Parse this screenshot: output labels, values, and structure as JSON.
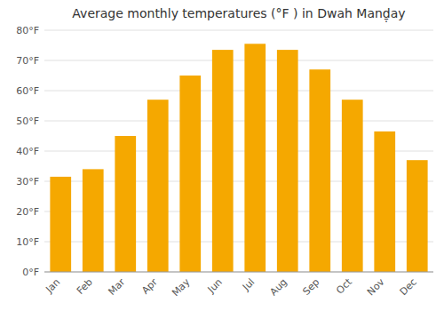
{
  "chart_data": {
    "type": "bar",
    "title": "Average monthly temperatures (°F ) in Dwah Manḏ̣ay",
    "categories": [
      "Jan",
      "Feb",
      "Mar",
      "Apr",
      "May",
      "Jun",
      "Jul",
      "Aug",
      "Sep",
      "Oct",
      "Nov",
      "Dec"
    ],
    "values": [
      31.5,
      34,
      45,
      57,
      65,
      73.5,
      75.5,
      73.5,
      67,
      57,
      46.5,
      37
    ],
    "color": "#F5A800",
    "ylim": [
      0,
      80
    ],
    "yticks": [
      {
        "value": 0,
        "label": "0°F"
      },
      {
        "value": 10,
        "label": "10°F"
      },
      {
        "value": 20,
        "label": "20°F"
      },
      {
        "value": 30,
        "label": "30°F"
      },
      {
        "value": 40,
        "label": "40°F"
      },
      {
        "value": 50,
        "label": "50°F"
      },
      {
        "value": 60,
        "label": "60°F"
      },
      {
        "value": 70,
        "label": "70°F"
      },
      {
        "value": 80,
        "label": "80°F"
      }
    ],
    "grid": true
  }
}
